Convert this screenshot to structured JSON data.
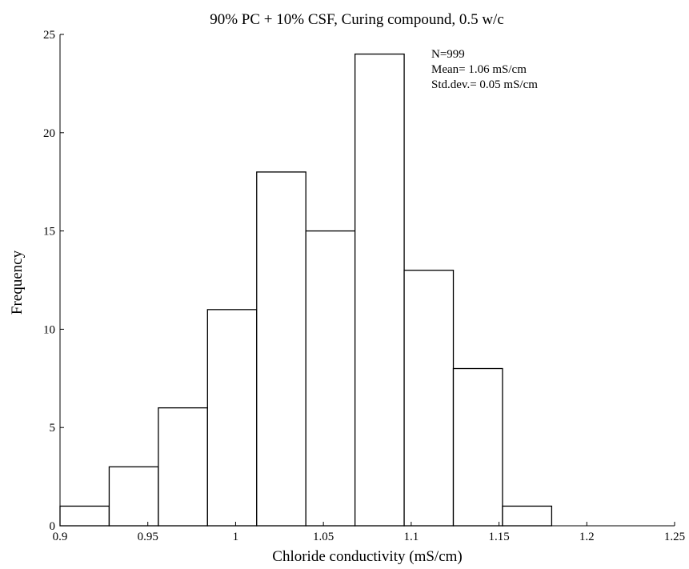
{
  "chart_data": {
    "type": "bar",
    "title": "90% PC + 10% CSF, Curing compound, 0.5 w/c",
    "xlabel": "Chloride conductivity (mS/cm)",
    "ylabel": "Frequency",
    "xlim": [
      0.9,
      1.25
    ],
    "ylim": [
      0,
      25
    ],
    "xticks": [
      "0.9",
      "0.95",
      "1",
      "1.05",
      "1.1",
      "1.15",
      "1.2",
      "1.25"
    ],
    "yticks": [
      "0",
      "5",
      "10",
      "15",
      "20",
      "25"
    ],
    "bins": [
      {
        "x0": 0.9,
        "x1": 0.928,
        "value": 1
      },
      {
        "x0": 0.928,
        "x1": 0.956,
        "value": 3
      },
      {
        "x0": 0.956,
        "x1": 0.984,
        "value": 6
      },
      {
        "x0": 0.984,
        "x1": 1.012,
        "value": 11
      },
      {
        "x0": 1.012,
        "x1": 1.04,
        "value": 18
      },
      {
        "x0": 1.04,
        "x1": 1.068,
        "value": 15
      },
      {
        "x0": 1.068,
        "x1": 1.096,
        "value": 24
      },
      {
        "x0": 1.096,
        "x1": 1.124,
        "value": 13
      },
      {
        "x0": 1.124,
        "x1": 1.152,
        "value": 8
      },
      {
        "x0": 1.152,
        "x1": 1.18,
        "value": 1
      }
    ],
    "annotations": [
      "N=999",
      "Mean= 1.06 mS/cm",
      "Std.dev.= 0.05 mS/cm"
    ],
    "grid": false
  }
}
